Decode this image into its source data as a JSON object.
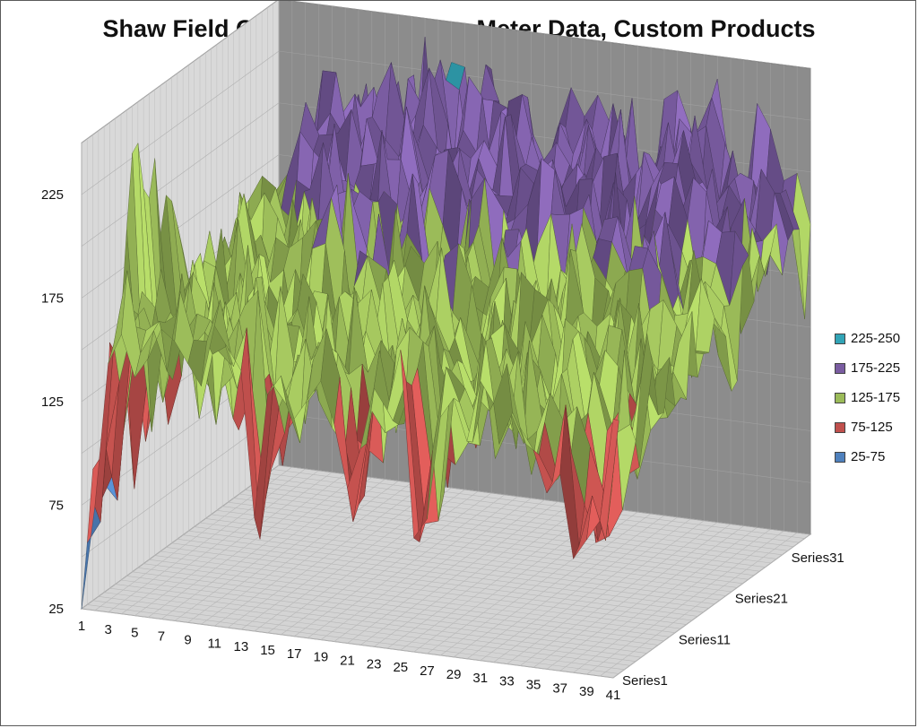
{
  "chart_data": {
    "type": "surface",
    "title": "Shaw Field Compiled Roungess Meter Data, Custom Products",
    "x_tick_labels": [
      "1",
      "3",
      "5",
      "7",
      "9",
      "11",
      "13",
      "15",
      "17",
      "19",
      "21",
      "23",
      "25",
      "27",
      "29",
      "31",
      "33",
      "35",
      "37",
      "39",
      "41"
    ],
    "series_labels": [
      "Series1",
      "Series11",
      "Series21",
      "Series31"
    ],
    "z_tick_labels": [
      "25",
      "75",
      "125",
      "175",
      "225"
    ],
    "zlim": [
      25,
      250
    ],
    "x_count": 41,
    "series_count": 36,
    "legend": [
      {
        "label": "225-250",
        "color": "#31a4b6"
      },
      {
        "label": "175-225",
        "color": "#7a5ca1"
      },
      {
        "label": "125-175",
        "color": "#9bbb59"
      },
      {
        "label": "75-125",
        "color": "#c0504d"
      },
      {
        "label": "25-75",
        "color": "#4f81bd"
      }
    ],
    "series": [
      {
        "name": "Series1",
        "values": [
          25,
          75,
          145,
          160,
          140,
          150,
          165,
          160,
          150,
          140,
          170,
          160,
          150,
          80,
          140,
          150,
          130,
          140,
          150,
          130,
          100,
          120,
          150,
          140,
          170,
          80,
          90,
          140,
          150,
          130,
          160,
          150,
          170,
          140,
          130,
          110,
          120,
          80,
          90,
          100,
          150
        ]
      },
      {
        "name": "Series11",
        "values": [
          230,
          100,
          140,
          150,
          130,
          160,
          140,
          150,
          120,
          140,
          130,
          150,
          160,
          140,
          120,
          150,
          170,
          140,
          160,
          130,
          150,
          140,
          170,
          150,
          130,
          120,
          150,
          140,
          160,
          150,
          140,
          130,
          120,
          150,
          160,
          140,
          150,
          140,
          130,
          150,
          160
        ]
      },
      {
        "name": "Series21",
        "values": [
          120,
          130,
          150,
          160,
          140,
          170,
          150,
          160,
          180,
          150,
          170,
          160,
          190,
          170,
          150,
          160,
          180,
          170,
          150,
          160,
          170,
          180,
          150,
          160,
          170,
          190,
          160,
          150,
          170,
          160,
          180,
          170,
          160,
          150,
          170,
          180,
          160,
          150,
          170,
          160,
          150
        ]
      },
      {
        "name": "Series31",
        "values": [
          140,
          150,
          170,
          180,
          190,
          200,
          210,
          200,
          190,
          210,
          200,
          220,
          190,
          210,
          200,
          190,
          210,
          200,
          190,
          200,
          210,
          190,
          200,
          210,
          200,
          190,
          210,
          200,
          190,
          200,
          210,
          200,
          190,
          210,
          200,
          190,
          200,
          190,
          180,
          170,
          160
        ]
      }
    ],
    "legend_position": "right",
    "grid": true
  }
}
